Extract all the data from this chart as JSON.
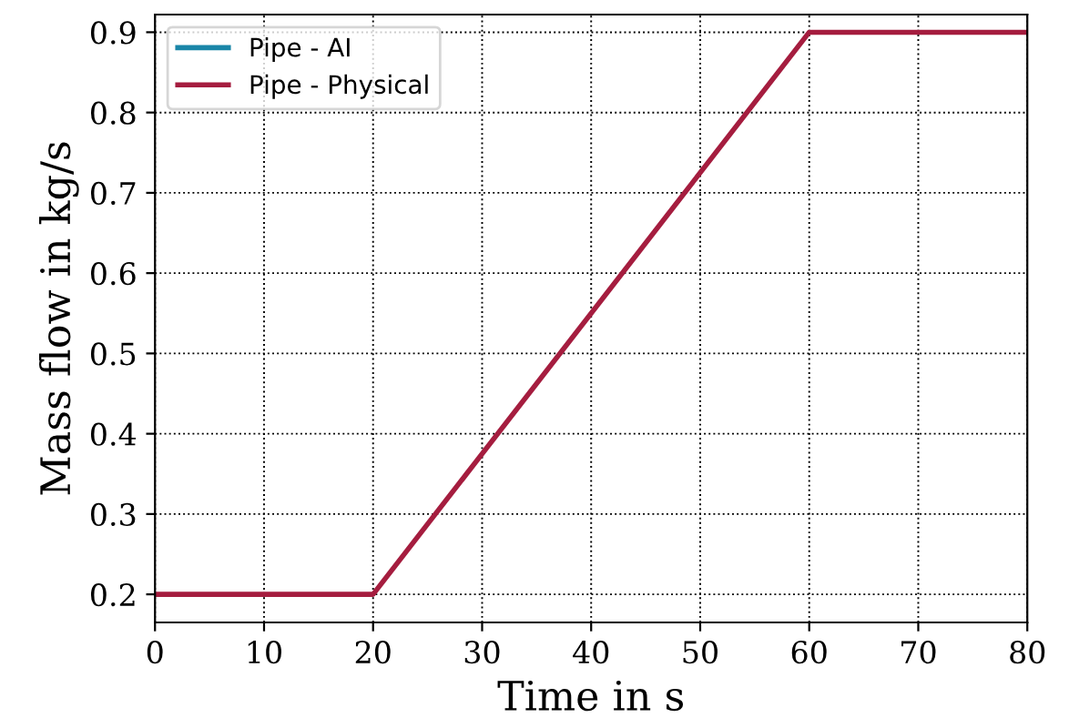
{
  "chart_data": {
    "type": "line",
    "xlabel": "Time in s",
    "ylabel": "Mass flow in kg/s",
    "x": [
      0,
      20,
      60,
      80
    ],
    "series": [
      {
        "name": "Pipe - AI",
        "color": "#1a86a8",
        "values": [
          null,
          null,
          null,
          null
        ]
      },
      {
        "name": "Pipe - Physical",
        "color": "#a51d3f",
        "values": [
          0.2,
          0.2,
          0.9,
          0.9
        ]
      }
    ],
    "xlim": [
      0,
      80
    ],
    "ylim": [
      0.165,
      0.922
    ],
    "xticks": [
      0,
      10,
      20,
      30,
      40,
      50,
      60,
      70,
      80
    ],
    "yticks": [
      0.2,
      0.3,
      0.4,
      0.5,
      0.6,
      0.7,
      0.8,
      0.9
    ],
    "grid": true,
    "legend": "top left",
    "marker": "none",
    "line_style": "solid"
  }
}
